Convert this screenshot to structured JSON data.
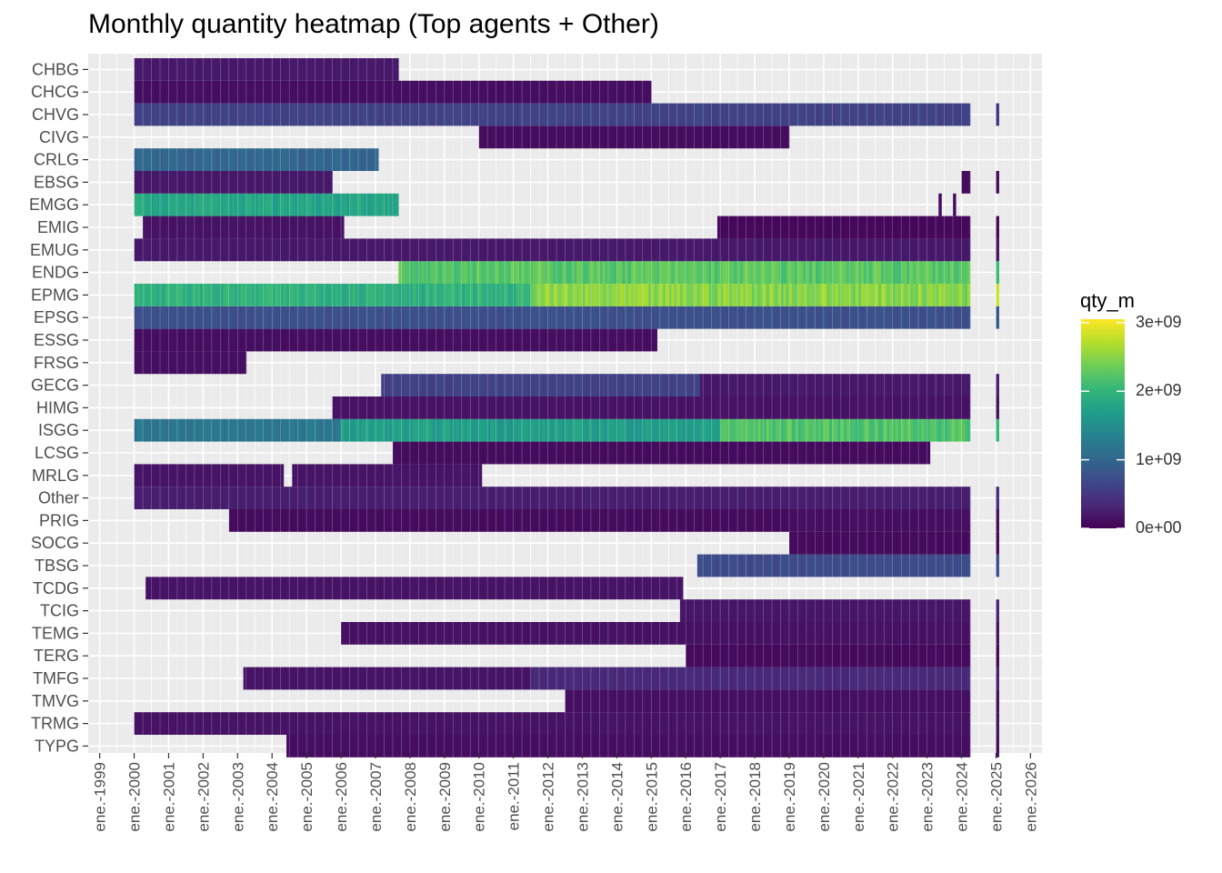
{
  "chart_data": {
    "type": "heatmap",
    "title": "Monthly quantity heatmap (Top agents + Other)",
    "xlabel": "",
    "ylabel": "",
    "x_ticks": [
      "ene.-1999",
      "ene.-2000",
      "ene.-2001",
      "ene.-2002",
      "ene.-2003",
      "ene.-2004",
      "ene.-2005",
      "ene.-2006",
      "ene.-2007",
      "ene.-2008",
      "ene.-2009",
      "ene.-2010",
      "ene.-2011",
      "ene.-2012",
      "ene.-2013",
      "ene.-2014",
      "ene.-2015",
      "ene.-2016",
      "ene.-2017",
      "ene.-2018",
      "ene.-2019",
      "ene.-2020",
      "ene.-2021",
      "ene.-2022",
      "ene.-2023",
      "ene.-2024",
      "ene.-2025",
      "ene.-2026"
    ],
    "xlim": [
      "1998-09",
      "2026-05"
    ],
    "legend": {
      "title": "qty_m",
      "min": 0,
      "max": 3050000000,
      "ticks": [
        {
          "value": 0,
          "label": "0e+00"
        },
        {
          "value": 1000000000,
          "label": "1e+09"
        },
        {
          "value": 2000000000,
          "label": "2e+09"
        },
        {
          "value": 3000000000,
          "label": "3e+09"
        }
      ],
      "palette": [
        "#440154",
        "#482878",
        "#3e4989",
        "#31688e",
        "#26828e",
        "#1f9e89",
        "#35b779",
        "#6ece58",
        "#b5de2b",
        "#fde725"
      ],
      "position": "right"
    },
    "background": "#ebebeb",
    "grid": true,
    "series": [
      {
        "name": "TYPG",
        "segments": [
          {
            "start": "2004-06",
            "end": "2024-03",
            "level": 110000000
          },
          {
            "start": "2025-01",
            "end": "2025-01",
            "level": 120000000
          }
        ]
      },
      {
        "name": "TRMG",
        "segments": [
          {
            "start": "2000-01",
            "end": "2024-03",
            "level": 150000000
          },
          {
            "start": "2025-01",
            "end": "2025-01",
            "level": 150000000
          }
        ]
      },
      {
        "name": "TMVG",
        "segments": [
          {
            "start": "2012-07",
            "end": "2024-03",
            "level": 120000000
          },
          {
            "start": "2025-01",
            "end": "2025-01",
            "level": 120000000
          }
        ]
      },
      {
        "name": "TMFG",
        "segments": [
          {
            "start": "2003-03",
            "end": "2011-06",
            "level": 160000000
          },
          {
            "start": "2011-07",
            "end": "2024-03",
            "level": 350000000
          },
          {
            "start": "2025-01",
            "end": "2025-01",
            "level": 300000000
          }
        ]
      },
      {
        "name": "TERG",
        "segments": [
          {
            "start": "2016-01",
            "end": "2024-03",
            "level": 80000000
          },
          {
            "start": "2025-01",
            "end": "2025-01",
            "level": 80000000
          }
        ]
      },
      {
        "name": "TEMG",
        "segments": [
          {
            "start": "2006-01",
            "end": "2024-03",
            "level": 140000000
          },
          {
            "start": "2025-01",
            "end": "2025-01",
            "level": 140000000
          }
        ]
      },
      {
        "name": "TCIG",
        "segments": [
          {
            "start": "2015-11",
            "end": "2024-03",
            "level": 180000000
          },
          {
            "start": "2025-01",
            "end": "2025-01",
            "level": 300000000
          }
        ]
      },
      {
        "name": "TCDG",
        "segments": [
          {
            "start": "2000-05",
            "end": "2015-11",
            "level": 160000000
          }
        ]
      },
      {
        "name": "TBSG",
        "segments": [
          {
            "start": "2016-05",
            "end": "2024-03",
            "level": 700000000
          },
          {
            "start": "2025-01",
            "end": "2025-01",
            "level": 700000000
          }
        ]
      },
      {
        "name": "SOCG",
        "segments": [
          {
            "start": "2019-01",
            "end": "2024-03",
            "level": 80000000
          },
          {
            "start": "2025-01",
            "end": "2025-01",
            "level": 80000000
          }
        ]
      },
      {
        "name": "PRIG",
        "segments": [
          {
            "start": "2002-10",
            "end": "2018-12",
            "level": 90000000
          },
          {
            "start": "2019-01",
            "end": "2024-03",
            "level": 110000000
          },
          {
            "start": "2025-01",
            "end": "2025-01",
            "level": 110000000
          }
        ]
      },
      {
        "name": "Other",
        "segments": [
          {
            "start": "2000-01",
            "end": "2024-03",
            "level": 250000000
          },
          {
            "start": "2025-01",
            "end": "2025-01",
            "level": 400000000
          }
        ]
      },
      {
        "name": "MRLG",
        "segments": [
          {
            "start": "2000-01",
            "end": "2004-04",
            "level": 160000000
          },
          {
            "start": "2004-08",
            "end": "2010-01",
            "level": 160000000
          }
        ]
      },
      {
        "name": "LCSG",
        "segments": [
          {
            "start": "2007-07",
            "end": "2023-01",
            "level": 90000000
          }
        ]
      },
      {
        "name": "ISGG",
        "segments": [
          {
            "start": "2000-01",
            "end": "2005-12",
            "level": 1200000000
          },
          {
            "start": "2006-01",
            "end": "2016-12",
            "level": 1700000000
          },
          {
            "start": "2017-01",
            "end": "2024-03",
            "level": 2200000000
          },
          {
            "start": "2025-01",
            "end": "2025-01",
            "level": 2000000000
          }
        ]
      },
      {
        "name": "HIMG",
        "segments": [
          {
            "start": "2005-10",
            "end": "2024-03",
            "level": 150000000
          },
          {
            "start": "2025-01",
            "end": "2025-01",
            "level": 150000000
          }
        ]
      },
      {
        "name": "GECG",
        "segments": [
          {
            "start": "2007-03",
            "end": "2016-05",
            "level": 600000000
          },
          {
            "start": "2016-06",
            "end": "2024-03",
            "level": 200000000
          },
          {
            "start": "2025-01",
            "end": "2025-01",
            "level": 300000000
          }
        ]
      },
      {
        "name": "FRSG",
        "segments": [
          {
            "start": "2000-01",
            "end": "2003-03",
            "level": 120000000
          }
        ]
      },
      {
        "name": "ESSG",
        "segments": [
          {
            "start": "2000-01",
            "end": "2015-02",
            "level": 110000000
          }
        ]
      },
      {
        "name": "EPSG",
        "segments": [
          {
            "start": "2000-01",
            "end": "2024-03",
            "level": 750000000
          },
          {
            "start": "2025-01",
            "end": "2025-01",
            "level": 800000000
          }
        ]
      },
      {
        "name": "EPMG",
        "segments": [
          {
            "start": "2000-01",
            "end": "2011-06",
            "level": 1950000000
          },
          {
            "start": "2011-07",
            "end": "2024-03",
            "level": 2500000000
          },
          {
            "start": "2025-01",
            "end": "2025-01",
            "level": 3000000000
          }
        ]
      },
      {
        "name": "ENDG",
        "segments": [
          {
            "start": "2007-09",
            "end": "2024-03",
            "level": 2250000000
          },
          {
            "start": "2025-01",
            "end": "2025-01",
            "level": 2000000000
          }
        ]
      },
      {
        "name": "EMUG",
        "segments": [
          {
            "start": "2000-01",
            "end": "2024-03",
            "level": 200000000
          },
          {
            "start": "2025-01",
            "end": "2025-01",
            "level": 200000000
          }
        ]
      },
      {
        "name": "EMIG",
        "segments": [
          {
            "start": "2000-04",
            "end": "2006-01",
            "level": 150000000
          },
          {
            "start": "2016-12",
            "end": "2024-03",
            "level": 60000000
          },
          {
            "start": "2025-01",
            "end": "2025-01",
            "level": 60000000
          }
        ]
      },
      {
        "name": "EMGG",
        "segments": [
          {
            "start": "2000-01",
            "end": "2007-08",
            "level": 1800000000
          },
          {
            "start": "2023-05",
            "end": "2023-05",
            "level": 100000000
          },
          {
            "start": "2023-10",
            "end": "2023-10",
            "level": 100000000
          }
        ]
      },
      {
        "name": "EBSG",
        "segments": [
          {
            "start": "2000-01",
            "end": "2005-09",
            "level": 200000000
          },
          {
            "start": "2024-01",
            "end": "2024-03",
            "level": 100000000
          },
          {
            "start": "2025-01",
            "end": "2025-01",
            "level": 100000000
          }
        ]
      },
      {
        "name": "CRLG",
        "segments": [
          {
            "start": "2000-01",
            "end": "2007-01",
            "level": 1000000000
          }
        ]
      },
      {
        "name": "CIVG",
        "segments": [
          {
            "start": "2010-01",
            "end": "2018-12",
            "level": 100000000
          }
        ]
      },
      {
        "name": "CHVG",
        "segments": [
          {
            "start": "2000-01",
            "end": "2024-03",
            "level": 600000000
          },
          {
            "start": "2025-01",
            "end": "2025-01",
            "level": 500000000
          }
        ]
      },
      {
        "name": "CHCG",
        "segments": [
          {
            "start": "2000-01",
            "end": "2014-12",
            "level": 110000000
          }
        ]
      },
      {
        "name": "CHBG",
        "segments": [
          {
            "start": "2000-01",
            "end": "2007-08",
            "level": 200000000
          }
        ]
      }
    ]
  }
}
